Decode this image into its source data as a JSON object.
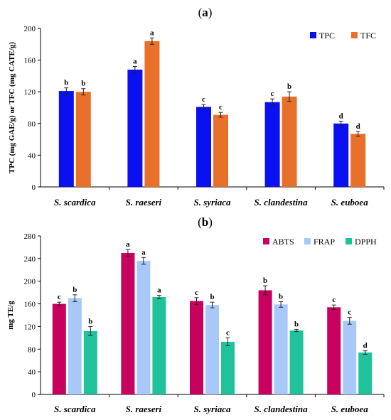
{
  "chart_data": [
    {
      "type": "bar",
      "panel_label": "(a)",
      "ylabel": "TPC (mg GAE/g) or TFC (mg CATE/g)",
      "xlabel": "",
      "ylim": [
        0,
        200
      ],
      "yticks": [
        0,
        40,
        80,
        120,
        160,
        200
      ],
      "categories": [
        "S. scardica",
        "S. raeseri",
        "S. syriaca",
        "S. clandestina",
        "S. euboea"
      ],
      "legend_position": "top-right",
      "grid": false,
      "series": [
        {
          "name": "TPC",
          "color": "#0a10f0",
          "values": [
            121,
            148,
            101,
            107,
            80
          ],
          "errors": [
            4,
            4,
            3,
            4,
            3
          ],
          "labels": [
            "b",
            "a",
            "c",
            "c",
            "d"
          ]
        },
        {
          "name": "TFC",
          "color": "#e8702a",
          "values": [
            120,
            184,
            91,
            114,
            67
          ],
          "errors": [
            4,
            4,
            3,
            6,
            3
          ],
          "labels": [
            "b",
            "a",
            "c",
            "b",
            "d"
          ]
        }
      ]
    },
    {
      "type": "bar",
      "panel_label": "(b)",
      "ylabel": "mg TE/g",
      "xlabel": "",
      "ylim": [
        0,
        280
      ],
      "yticks": [
        0,
        40,
        80,
        120,
        160,
        200,
        240,
        280
      ],
      "categories": [
        "S. scardica",
        "S. raeseri",
        "S. syriaca",
        "S. clandestina",
        "S. euboea"
      ],
      "legend_position": "top-right",
      "grid": false,
      "series": [
        {
          "name": "ABTS",
          "color": "#c8005e",
          "values": [
            160,
            250,
            165,
            184,
            154
          ],
          "errors": [
            3,
            6,
            6,
            8,
            4
          ],
          "labels": [
            "c",
            "a",
            "c",
            "b",
            "c"
          ]
        },
        {
          "name": "FRAP",
          "color": "#a8c8f8",
          "values": [
            170,
            236,
            158,
            159,
            130
          ],
          "errors": [
            6,
            6,
            5,
            5,
            6
          ],
          "labels": [
            "b",
            "a",
            "b",
            "b",
            "c"
          ]
        },
        {
          "name": "DPPH",
          "color": "#1fc29a",
          "values": [
            112,
            172,
            93,
            113,
            74
          ],
          "errors": [
            8,
            3,
            7,
            2,
            3
          ],
          "labels": [
            "b",
            "a",
            "c",
            "b",
            "d"
          ]
        }
      ]
    }
  ]
}
